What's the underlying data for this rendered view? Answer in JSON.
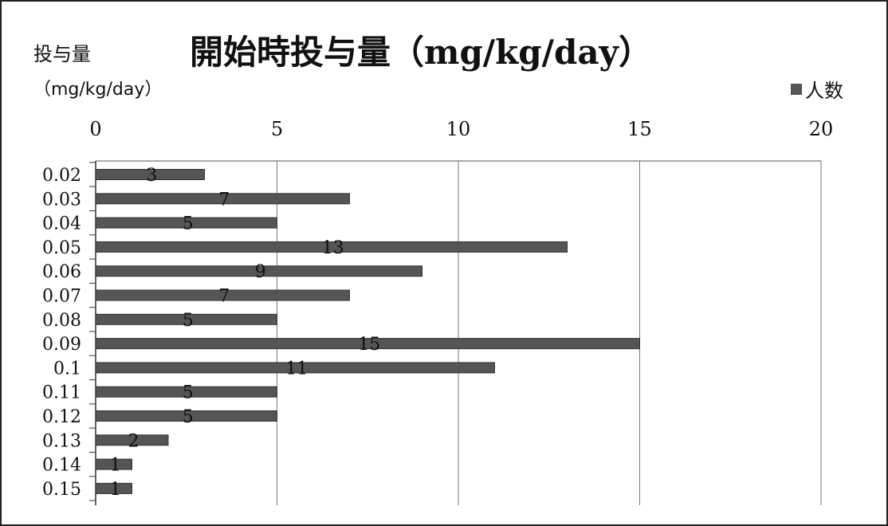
{
  "chart_data": {
    "type": "bar",
    "orientation": "horizontal",
    "title": "開始時投与量（mg/kg/day）",
    "ylabel": "投与量",
    "yunit": "（mg/kg/day）",
    "xlabel": "",
    "categories": [
      "0.02",
      "0.03",
      "0.04",
      "0.05",
      "0.06",
      "0.07",
      "0.08",
      "0.09",
      "0.1",
      "0.11",
      "0.12",
      "0.13",
      "0.14",
      "0.15"
    ],
    "series": [
      {
        "name": "人数",
        "values": [
          3,
          7,
          5,
          13,
          9,
          7,
          5,
          15,
          11,
          5,
          5,
          2,
          1,
          1
        ]
      }
    ],
    "xlim": [
      0,
      20
    ],
    "xticks": [
      0,
      5,
      10,
      15,
      20
    ],
    "grid": true,
    "legend": "top-right",
    "bar_color": "#555555",
    "data_labels": true
  }
}
